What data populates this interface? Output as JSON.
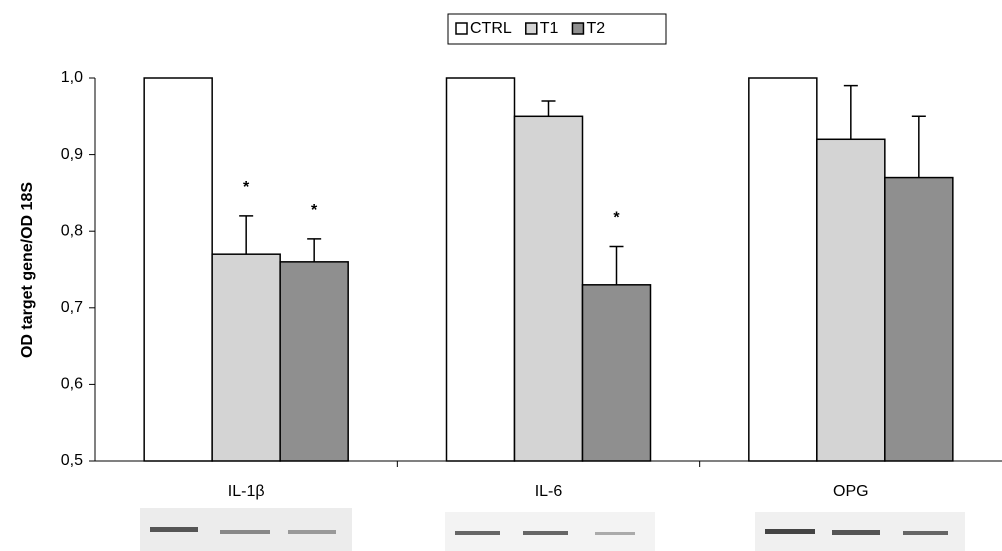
{
  "chart_data": {
    "type": "bar",
    "y_label": "OD target gene/OD 18S",
    "categories": [
      "IL-1β",
      "IL-6",
      "OPG"
    ],
    "series": [
      {
        "name": "CTRL",
        "color": "#ffffff",
        "values": [
          1.0,
          1.0,
          1.0
        ]
      },
      {
        "name": "T1",
        "color": "#d4d4d4",
        "values": [
          0.77,
          0.95,
          0.92
        ],
        "errors": [
          0.05,
          0.02,
          0.07
        ],
        "annotations": [
          "*",
          null,
          null
        ]
      },
      {
        "name": "T2",
        "color": "#8f8f8f",
        "values": [
          0.76,
          0.73,
          0.87
        ],
        "errors": [
          0.03,
          0.05,
          0.08
        ],
        "annotations": [
          "*",
          "*",
          null
        ]
      }
    ],
    "ylim": [
      0.5,
      1.0
    ],
    "yticks": [
      {
        "value": 0.5,
        "label": "0,5"
      },
      {
        "value": 0.6,
        "label": "0,6"
      },
      {
        "value": 0.7,
        "label": "0,7"
      },
      {
        "value": 0.8,
        "label": "0,8"
      },
      {
        "value": 0.9,
        "label": "0,9"
      },
      {
        "value": 1.0,
        "label": "1,0"
      }
    ],
    "grid": false,
    "legend": "top"
  }
}
